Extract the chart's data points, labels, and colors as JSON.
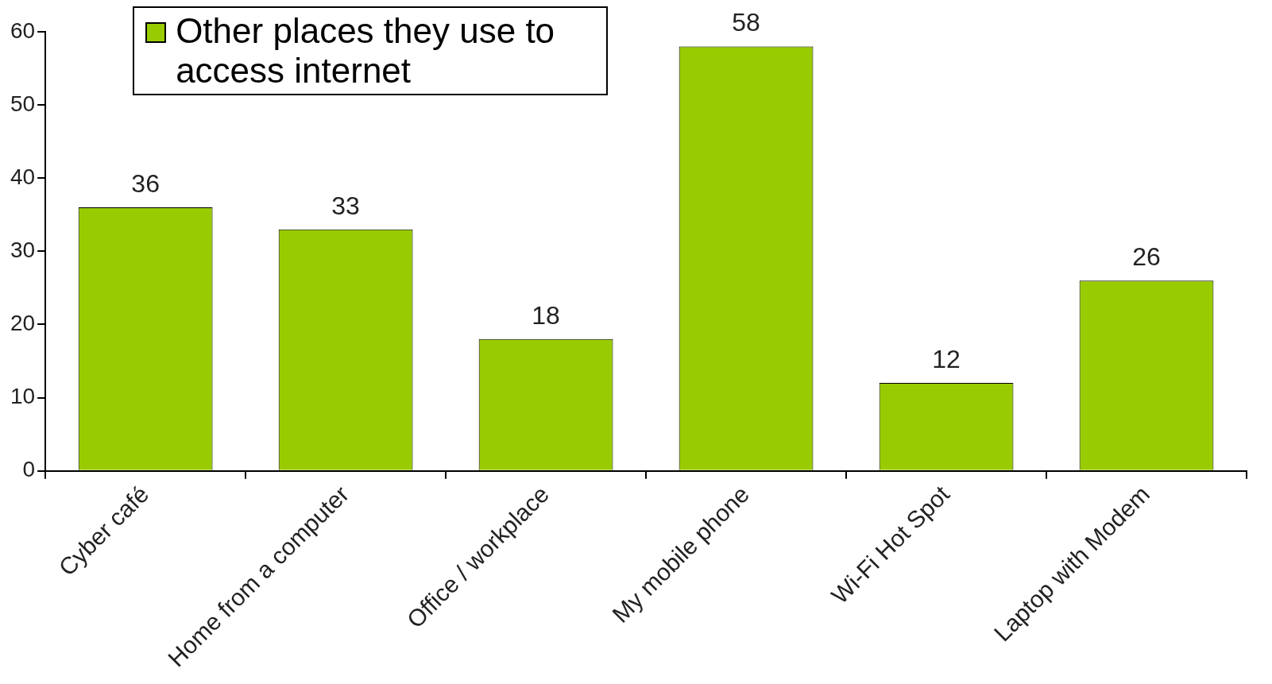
{
  "chart_data": {
    "type": "bar",
    "categories": [
      "Cyber café",
      "Home from a computer",
      "Office / workplace",
      "My mobile phone",
      "Wi-Fi Hot Spot",
      "Laptop with Modem"
    ],
    "series": [
      {
        "name": "Other places they use to access internet",
        "color": "#99cc00",
        "values": [
          36,
          33,
          18,
          58,
          12,
          26
        ]
      }
    ],
    "ylim": [
      0,
      60
    ],
    "yticks": [
      0,
      10,
      20,
      30,
      40,
      50,
      60
    ],
    "data_labels": true,
    "legend": "top left",
    "grid": false
  }
}
